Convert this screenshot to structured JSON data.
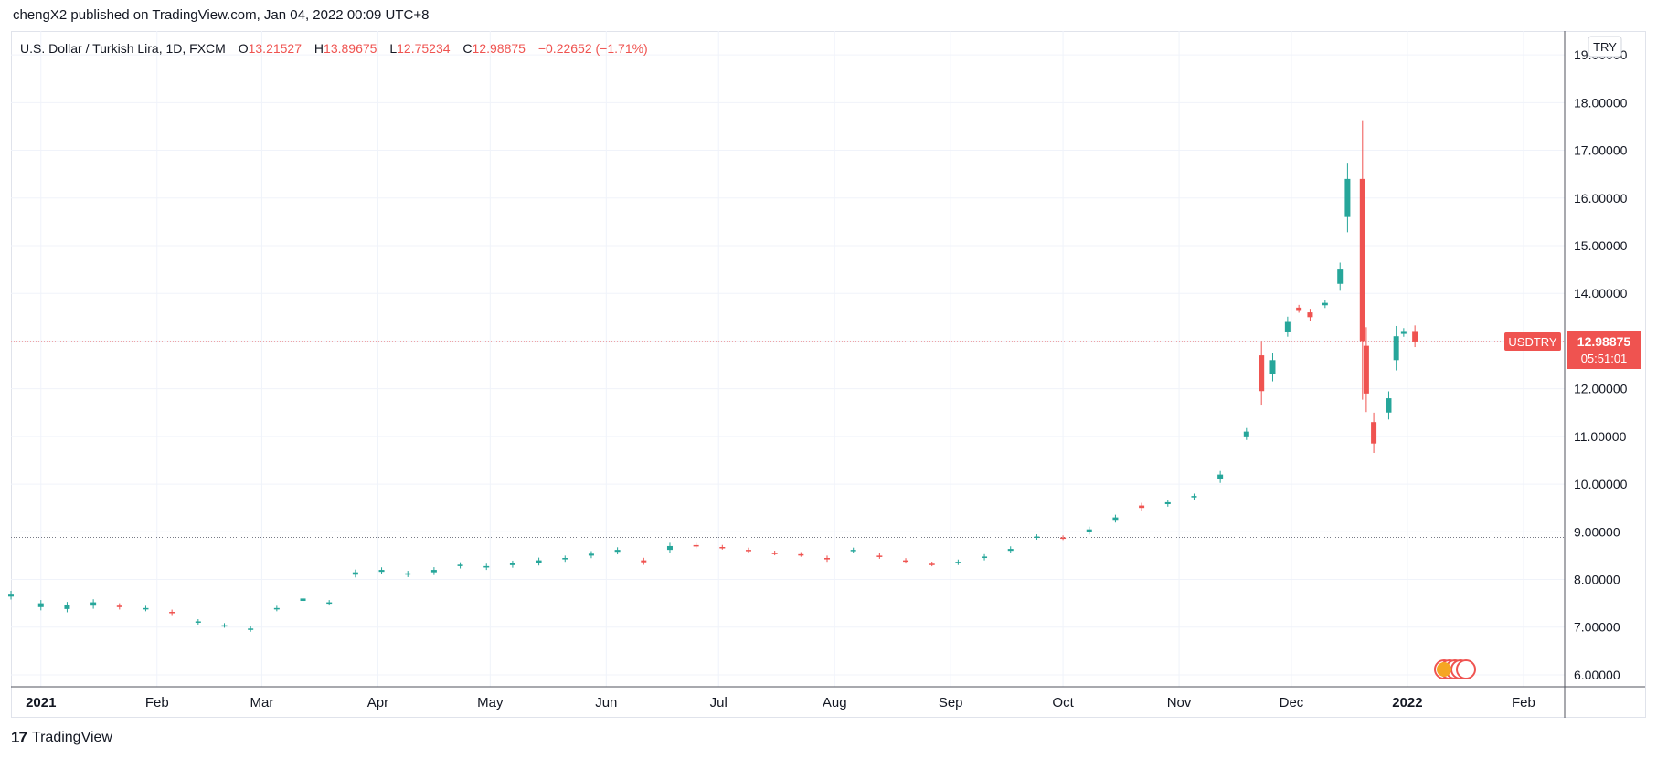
{
  "publish_line": "chengX2 published on TradingView.com, Jan 04, 2022 00:09 UTC+8",
  "footer": {
    "logo_mark": "17",
    "brand": "TradingView"
  },
  "legend": {
    "symbol_text": "U.S. Dollar / Turkish Lira, 1D, FXCM",
    "o_label": "O",
    "o_value": "13.21527",
    "h_label": "H",
    "h_value": "13.89675",
    "l_label": "L",
    "l_value": "12.75234",
    "c_label": "C",
    "c_value": "12.98875",
    "change": "−0.22652 (−1.71%)"
  },
  "price_axis": {
    "currency": "TRY",
    "labels": [
      "6.00000",
      "7.00000",
      "8.00000",
      "9.00000",
      "10.00000",
      "11.00000",
      "12.00000",
      "13.00000",
      "14.00000",
      "15.00000",
      "16.00000",
      "17.00000",
      "18.00000",
      "19.00000"
    ]
  },
  "time_axis": {
    "labels": [
      "2021",
      "Feb",
      "Mar",
      "Apr",
      "May",
      "Jun",
      "Jul",
      "Aug",
      "Sep",
      "Oct",
      "Nov",
      "Dec",
      "2022",
      "Feb"
    ]
  },
  "colors": {
    "up": "#26a69a",
    "down": "#ef5350",
    "grid": "#f0f3fa",
    "axis_text": "#131722"
  },
  "last_price": {
    "symbol": "USDTRY",
    "price": "12.98875",
    "countdown": "05:51:01",
    "value": 12.98875
  },
  "reference_line": {
    "value": 8.88
  },
  "chart_data": {
    "type": "candlestick",
    "title": "",
    "xlabel": "",
    "ylabel": "",
    "ylim": [
      5.75,
      19.5
    ],
    "xlim": [
      "2020-12-24",
      "2022-02-12"
    ],
    "grid": true,
    "points": [
      [
        "2020-12-24",
        7.64,
        7.7
      ],
      [
        "2021-01-01",
        7.42,
        7.5
      ],
      [
        "2021-01-08",
        7.38,
        7.46
      ],
      [
        "2021-01-15",
        7.45,
        7.52
      ],
      [
        "2021-01-22",
        7.45,
        7.42
      ],
      [
        "2021-01-29",
        7.38,
        7.4
      ],
      [
        "2021-02-05",
        7.32,
        7.3
      ],
      [
        "2021-02-12",
        7.1,
        7.12
      ],
      [
        "2021-02-19",
        7.03,
        7.04
      ],
      [
        "2021-02-26",
        6.95,
        6.97
      ],
      [
        "2021-03-05",
        7.38,
        7.4
      ],
      [
        "2021-03-12",
        7.55,
        7.6
      ],
      [
        "2021-03-19",
        7.5,
        7.52
      ],
      [
        "2021-03-26",
        8.1,
        8.15
      ],
      [
        "2021-04-02",
        8.16,
        8.2
      ],
      [
        "2021-04-09",
        8.1,
        8.13
      ],
      [
        "2021-04-16",
        8.15,
        8.2
      ],
      [
        "2021-04-23",
        8.28,
        8.31
      ],
      [
        "2021-04-30",
        8.25,
        8.28
      ],
      [
        "2021-05-07",
        8.3,
        8.34
      ],
      [
        "2021-05-14",
        8.35,
        8.4
      ],
      [
        "2021-05-21",
        8.42,
        8.45
      ],
      [
        "2021-05-28",
        8.5,
        8.54
      ],
      [
        "2021-06-04",
        8.58,
        8.62
      ],
      [
        "2021-06-11",
        8.4,
        8.36
      ],
      [
        "2021-06-18",
        8.62,
        8.7
      ],
      [
        "2021-06-25",
        8.72,
        8.7
      ],
      [
        "2021-07-02",
        8.68,
        8.67
      ],
      [
        "2021-07-09",
        8.62,
        8.6
      ],
      [
        "2021-07-16",
        8.56,
        8.55
      ],
      [
        "2021-07-23",
        8.53,
        8.52
      ],
      [
        "2021-07-30",
        8.45,
        8.42
      ],
      [
        "2021-08-06",
        8.6,
        8.62
      ],
      [
        "2021-08-13",
        8.5,
        8.48
      ],
      [
        "2021-08-20",
        8.4,
        8.38
      ],
      [
        "2021-08-27",
        8.33,
        8.32
      ],
      [
        "2021-09-03",
        8.35,
        8.37
      ],
      [
        "2021-09-10",
        8.45,
        8.48
      ],
      [
        "2021-09-17",
        8.6,
        8.64
      ],
      [
        "2021-09-24",
        8.88,
        8.9
      ],
      [
        "2021-10-01",
        8.88,
        8.87
      ],
      [
        "2021-10-08",
        9.0,
        9.05
      ],
      [
        "2021-10-15",
        9.25,
        9.3
      ],
      [
        "2021-10-22",
        9.55,
        9.5
      ],
      [
        "2021-10-29",
        9.58,
        9.62
      ],
      [
        "2021-11-05",
        9.72,
        9.75
      ],
      [
        "2021-11-12",
        10.1,
        10.2
      ],
      [
        "2021-11-19",
        11.0,
        11.1
      ],
      [
        "2021-11-23",
        12.7,
        11.95
      ],
      [
        "2021-11-26",
        12.3,
        12.6
      ],
      [
        "2021-11-30",
        13.2,
        13.4
      ],
      [
        "2021-12-03",
        13.7,
        13.65
      ],
      [
        "2021-12-06",
        13.6,
        13.5
      ],
      [
        "2021-12-10",
        13.75,
        13.8
      ],
      [
        "2021-12-14",
        14.2,
        14.5
      ],
      [
        "2021-12-16",
        15.6,
        16.4
      ],
      [
        "2021-12-20",
        16.4,
        13.0
      ],
      [
        "2021-12-21",
        12.9,
        11.9
      ],
      [
        "2021-12-23",
        11.3,
        10.85
      ],
      [
        "2021-12-27",
        11.5,
        11.8
      ],
      [
        "2021-12-29",
        12.6,
        13.1
      ],
      [
        "2021-12-31",
        13.15,
        13.21
      ],
      [
        "2022-01-03",
        13.21,
        12.99
      ]
    ]
  }
}
